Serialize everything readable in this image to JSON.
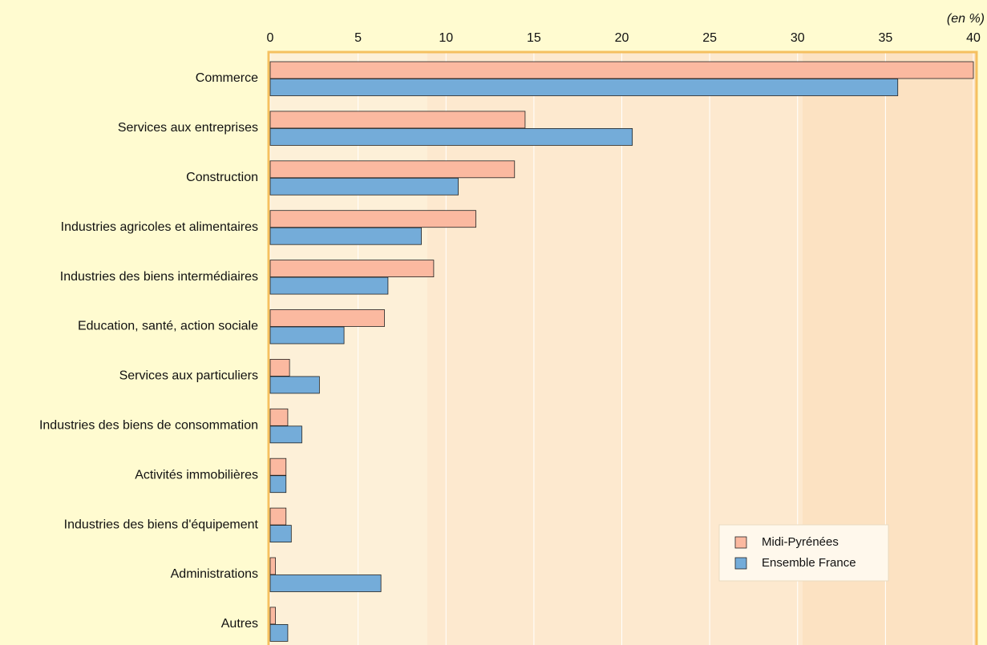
{
  "chart_data": {
    "type": "hbar",
    "annotation": "(en %)",
    "categories": [
      "Commerce",
      "Services aux entreprises",
      "Construction",
      "Industries agricoles et alimentaires",
      "Industries des biens intermédiaires",
      "Education, santé, action sociale",
      "Services aux particuliers",
      "Industries des biens de consommation",
      "Activités immobilières",
      "Industries des biens d'équipement",
      "Administrations",
      "Autres"
    ],
    "series": [
      {
        "name": "Midi-Pyrénées",
        "color": "#fbb9a0",
        "values": [
          40,
          14.5,
          13.9,
          11.7,
          9.3,
          6.5,
          1.1,
          1.0,
          0.9,
          0.9,
          0.3,
          0.3
        ]
      },
      {
        "name": "Ensemble France",
        "color": "#74acd9",
        "values": [
          35.7,
          20.6,
          10.7,
          8.6,
          6.7,
          4.2,
          2.8,
          1.8,
          0.9,
          1.2,
          6.3,
          1.0
        ]
      }
    ],
    "xlim": [
      0,
      40
    ],
    "xticks": [
      0,
      5,
      10,
      15,
      20,
      25,
      30,
      35,
      40
    ],
    "grid": true,
    "legend": "lower right"
  }
}
